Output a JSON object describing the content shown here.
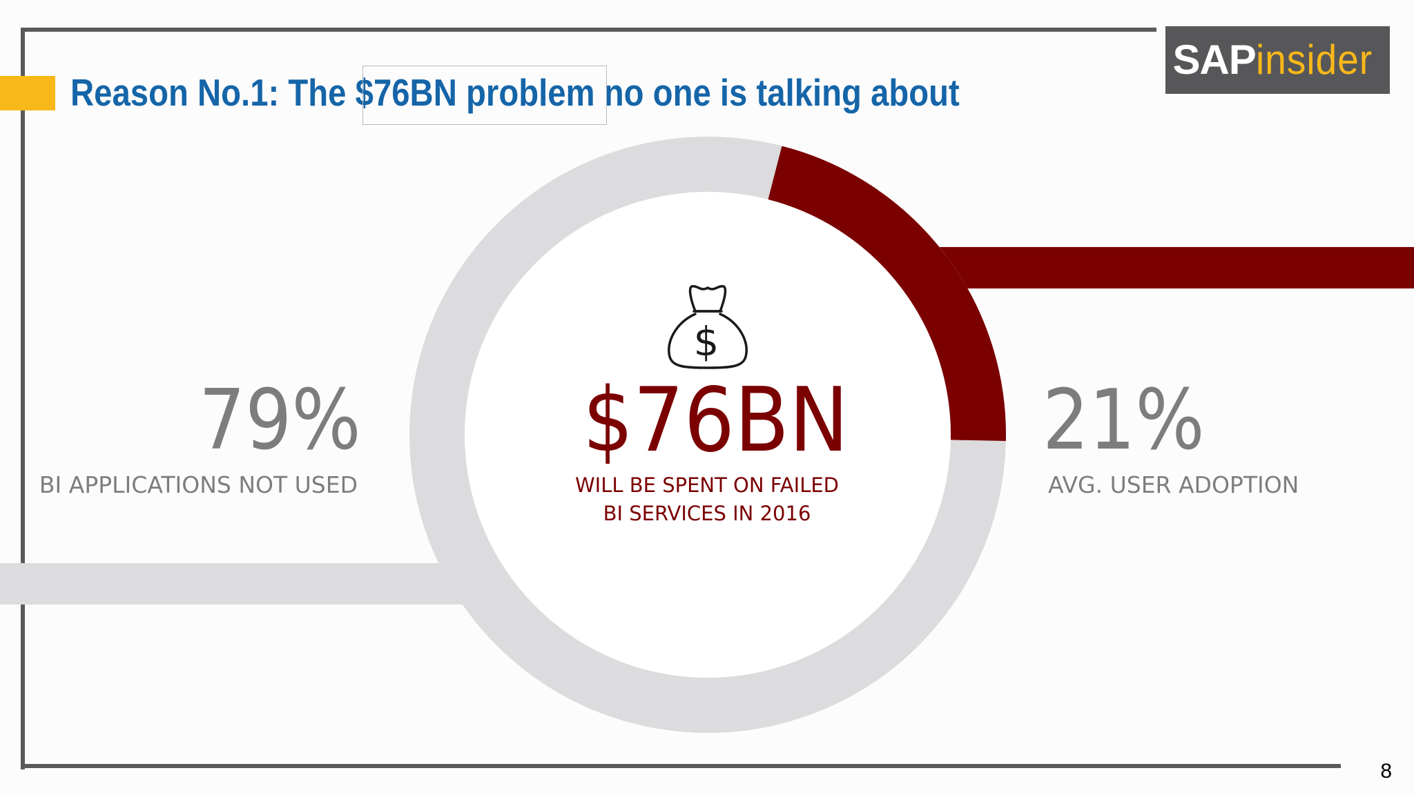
{
  "slide": {
    "title_prefix": "Reason No.1: The ",
    "title_highlight": "$76BN problem",
    "title_suffix": " no one is talking about",
    "page_number": "8"
  },
  "logo": {
    "part_a": "SAP",
    "part_b": "insider"
  },
  "center": {
    "value": "$76BN",
    "label_line1": "WILL BE SPENT ON FAILED",
    "label_line2": "BI SERVICES IN 2016",
    "icon": "money-bag-icon"
  },
  "colors": {
    "title": "#1565a8",
    "accent_yellow": "#f9b81a",
    "highlight_red": "#7b0000",
    "ring_gray": "#dcdbdd",
    "stat_gray": "#7d7d7d",
    "logo_bg": "#575759",
    "logo_text": "#ffffff",
    "logo_text_b": "#f9b81a"
  },
  "chart_data": {
    "type": "pie",
    "style": "donut",
    "slices": [
      {
        "label": "BI APPLICATIONS NOT USED",
        "value": 79,
        "display": "79%"
      },
      {
        "label": "AVG. USER ADOPTION",
        "value": 21,
        "display": "21%"
      }
    ],
    "title": "",
    "legend": "none"
  }
}
